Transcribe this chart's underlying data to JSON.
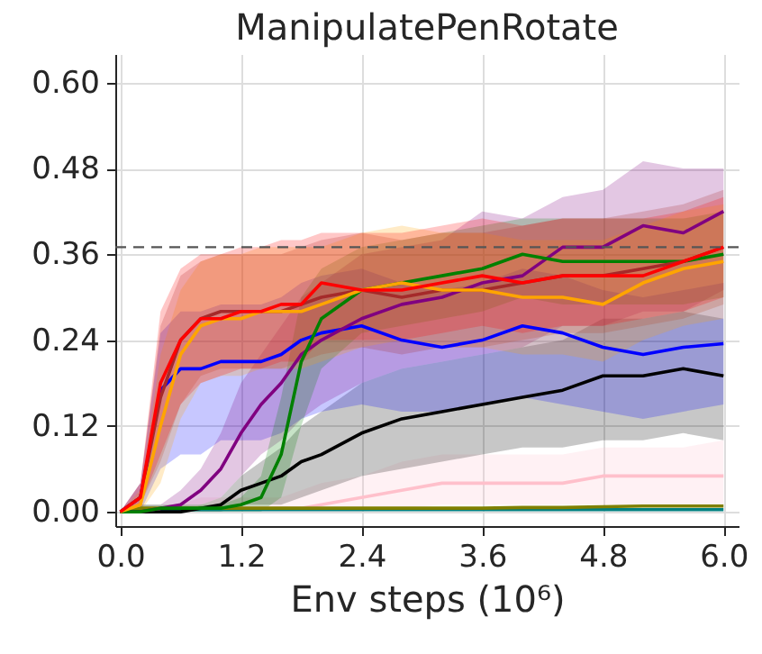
{
  "chart_data": {
    "type": "line",
    "title": "ManipulatePenRotate",
    "xlabel": "Env steps (10⁶)",
    "x": [
      0,
      0.2,
      0.4,
      0.6,
      0.8,
      1.0,
      1.2,
      1.4,
      1.6,
      1.8,
      2.0,
      2.4,
      2.8,
      3.2,
      3.6,
      4.0,
      4.4,
      4.8,
      5.2,
      5.6,
      6.0
    ],
    "series": [
      {
        "color": "#ffc0cb",
        "values": [
          0,
          0,
          0,
          0.005,
          0.005,
          0.005,
          0.005,
          0.005,
          0.005,
          0.005,
          0.01,
          0.02,
          0.03,
          0.04,
          0.04,
          0.04,
          0.04,
          0.05,
          0.05,
          0.05,
          0.05
        ],
        "lower": [
          0,
          0,
          0,
          0,
          0,
          0,
          0,
          0,
          0,
          0,
          0,
          0,
          0.005,
          0.01,
          0.01,
          0.01,
          0.01,
          0.01,
          0.01,
          0.01,
          0.01
        ],
        "upper": [
          0,
          0,
          0,
          0.01,
          0.02,
          0.02,
          0.02,
          0.02,
          0.02,
          0.03,
          0.04,
          0.05,
          0.07,
          0.08,
          0.08,
          0.08,
          0.08,
          0.09,
          0.09,
          0.09,
          0.1
        ]
      },
      {
        "color": "#008080",
        "values": [
          null,
          null,
          0.003,
          0.003,
          0.003,
          0.003,
          0.003,
          0.003,
          0.003,
          0.003,
          0.003,
          0.003,
          0.003,
          0.003,
          0.003,
          0.003,
          0.003,
          0.003,
          0.003,
          0.003,
          0.003
        ]
      },
      {
        "color": "#808000",
        "values": [
          0,
          0.005,
          0.005,
          0.005,
          0.005,
          0.005,
          0.005,
          0.005,
          0.005,
          0.005,
          0.005,
          0.005,
          0.005,
          0.005,
          0.005,
          0.006,
          0.006,
          0.007,
          0.008,
          0.008,
          0.008
        ]
      },
      {
        "color": "#000000",
        "values": [
          0,
          0,
          0,
          0,
          0.005,
          0.01,
          0.03,
          0.04,
          0.05,
          0.07,
          0.08,
          0.11,
          0.13,
          0.14,
          0.15,
          0.16,
          0.17,
          0.19,
          0.19,
          0.2,
          0.19
        ],
        "lower": [
          0,
          0,
          0,
          0,
          0,
          0,
          0.01,
          0.01,
          0.01,
          0.02,
          0.03,
          0.05,
          0.06,
          0.07,
          0.08,
          0.09,
          0.09,
          0.1,
          0.1,
          0.11,
          0.1
        ],
        "upper": [
          0,
          0,
          0,
          0,
          0.01,
          0.02,
          0.05,
          0.07,
          0.09,
          0.12,
          0.14,
          0.18,
          0.2,
          0.21,
          0.22,
          0.23,
          0.24,
          0.27,
          0.27,
          0.28,
          0.27
        ]
      },
      {
        "color": "#0000ff",
        "values": [
          0,
          0.02,
          0.17,
          0.2,
          0.2,
          0.21,
          0.21,
          0.21,
          0.22,
          0.24,
          0.25,
          0.26,
          0.24,
          0.23,
          0.24,
          0.26,
          0.25,
          0.23,
          0.22,
          0.23,
          0.235
        ],
        "lower": [
          0,
          0,
          0.06,
          0.08,
          0.08,
          0.1,
          0.1,
          0.1,
          0.11,
          0.13,
          0.14,
          0.15,
          0.14,
          0.14,
          0.15,
          0.16,
          0.15,
          0.14,
          0.13,
          0.14,
          0.15
        ],
        "upper": [
          0,
          0.04,
          0.25,
          0.28,
          0.28,
          0.29,
          0.29,
          0.29,
          0.3,
          0.32,
          0.33,
          0.34,
          0.32,
          0.31,
          0.32,
          0.34,
          0.33,
          0.31,
          0.3,
          0.31,
          0.32
        ]
      },
      {
        "color": "#800080",
        "values": [
          0,
          0,
          0.005,
          0.01,
          0.03,
          0.06,
          0.11,
          0.15,
          0.18,
          0.22,
          0.24,
          0.27,
          0.29,
          0.3,
          0.32,
          0.33,
          0.37,
          0.37,
          0.4,
          0.39,
          0.42
        ],
        "lower": [
          0,
          0,
          0,
          0,
          0.01,
          0.02,
          0.05,
          0.08,
          0.1,
          0.13,
          0.15,
          0.18,
          0.2,
          0.21,
          0.22,
          0.23,
          0.26,
          0.26,
          0.28,
          0.28,
          0.31
        ],
        "upper": [
          0,
          0.01,
          0.01,
          0.03,
          0.06,
          0.11,
          0.18,
          0.22,
          0.26,
          0.3,
          0.32,
          0.36,
          0.37,
          0.38,
          0.42,
          0.41,
          0.44,
          0.45,
          0.49,
          0.48,
          0.48
        ]
      },
      {
        "color": "#008000",
        "values": [
          0,
          0,
          0.005,
          0.005,
          0.005,
          0.005,
          0.01,
          0.02,
          0.08,
          0.21,
          0.27,
          0.31,
          0.32,
          0.33,
          0.34,
          0.36,
          0.35,
          0.35,
          0.35,
          0.35,
          0.36
        ],
        "lower": [
          0,
          0,
          0,
          0,
          0,
          0,
          0,
          0,
          0.02,
          0.12,
          0.2,
          0.25,
          0.26,
          0.27,
          0.28,
          0.3,
          0.29,
          0.29,
          0.29,
          0.29,
          0.3
        ],
        "upper": [
          0,
          0.01,
          0.01,
          0.01,
          0.01,
          0.01,
          0.02,
          0.05,
          0.16,
          0.3,
          0.34,
          0.37,
          0.38,
          0.39,
          0.4,
          0.41,
          0.41,
          0.41,
          0.41,
          0.41,
          0.42
        ]
      },
      {
        "color": "#a52a2a",
        "values": [
          0,
          0.02,
          0.16,
          0.24,
          0.27,
          0.28,
          0.28,
          0.28,
          0.28,
          0.29,
          0.3,
          0.31,
          0.3,
          0.31,
          0.31,
          0.32,
          0.33,
          0.33,
          0.34,
          0.35,
          0.37
        ],
        "lower": [
          0,
          0.01,
          0.07,
          0.15,
          0.19,
          0.2,
          0.2,
          0.2,
          0.2,
          0.21,
          0.22,
          0.23,
          0.22,
          0.23,
          0.23,
          0.24,
          0.25,
          0.25,
          0.26,
          0.27,
          0.29
        ],
        "upper": [
          0,
          0.04,
          0.26,
          0.33,
          0.35,
          0.36,
          0.36,
          0.36,
          0.36,
          0.37,
          0.38,
          0.39,
          0.38,
          0.39,
          0.39,
          0.4,
          0.41,
          0.41,
          0.42,
          0.43,
          0.45
        ]
      },
      {
        "color": "#ffa500",
        "values": [
          0,
          0.01,
          0.12,
          0.22,
          0.26,
          0.27,
          0.27,
          0.28,
          0.28,
          0.28,
          0.29,
          0.31,
          0.32,
          0.31,
          0.31,
          0.3,
          0.3,
          0.29,
          0.32,
          0.34,
          0.35
        ],
        "lower": [
          0,
          0,
          0.04,
          0.13,
          0.18,
          0.19,
          0.19,
          0.2,
          0.2,
          0.2,
          0.21,
          0.23,
          0.24,
          0.23,
          0.23,
          0.22,
          0.22,
          0.21,
          0.24,
          0.26,
          0.27
        ],
        "upper": [
          0,
          0.03,
          0.22,
          0.31,
          0.35,
          0.36,
          0.36,
          0.37,
          0.37,
          0.37,
          0.37,
          0.39,
          0.4,
          0.39,
          0.39,
          0.38,
          0.38,
          0.38,
          0.4,
          0.42,
          0.43
        ]
      },
      {
        "color": "#ff0000",
        "values": [
          0,
          0.02,
          0.18,
          0.24,
          0.27,
          0.27,
          0.28,
          0.28,
          0.29,
          0.29,
          0.32,
          0.31,
          0.31,
          0.32,
          0.33,
          0.32,
          0.33,
          0.33,
          0.33,
          0.35,
          0.37
        ],
        "lower": [
          0,
          0.01,
          0.08,
          0.15,
          0.18,
          0.19,
          0.2,
          0.2,
          0.21,
          0.21,
          0.24,
          0.24,
          0.24,
          0.25,
          0.26,
          0.25,
          0.26,
          0.26,
          0.27,
          0.28,
          0.3
        ],
        "upper": [
          0,
          0.04,
          0.28,
          0.34,
          0.36,
          0.36,
          0.37,
          0.37,
          0.38,
          0.38,
          0.39,
          0.39,
          0.39,
          0.4,
          0.41,
          0.4,
          0.41,
          0.41,
          0.41,
          0.42,
          0.44
        ]
      }
    ],
    "xlim": [
      -0.05,
      6.15
    ],
    "ylim": [
      -0.02,
      0.64
    ],
    "xticks": [
      {
        "value": 0,
        "label": "0.0"
      },
      {
        "value": 1.2,
        "label": "1.2"
      },
      {
        "value": 2.4,
        "label": "2.4"
      },
      {
        "value": 3.6,
        "label": "3.6"
      },
      {
        "value": 4.8,
        "label": "4.8"
      },
      {
        "value": 6,
        "label": "6.0"
      }
    ],
    "yticks": [
      {
        "value": 0,
        "label": "0.00"
      },
      {
        "value": 0.12,
        "label": "0.12"
      },
      {
        "value": 0.24,
        "label": "0.24"
      },
      {
        "value": 0.36,
        "label": "0.36"
      },
      {
        "value": 0.48,
        "label": "0.48"
      },
      {
        "value": 0.6,
        "label": "0.60"
      }
    ],
    "ref_lines": [
      {
        "axis": "y",
        "value": 0.37,
        "color": "#555555",
        "line_style": "dashed"
      }
    ],
    "grid": true,
    "marker": "none",
    "line_style": "solid"
  }
}
